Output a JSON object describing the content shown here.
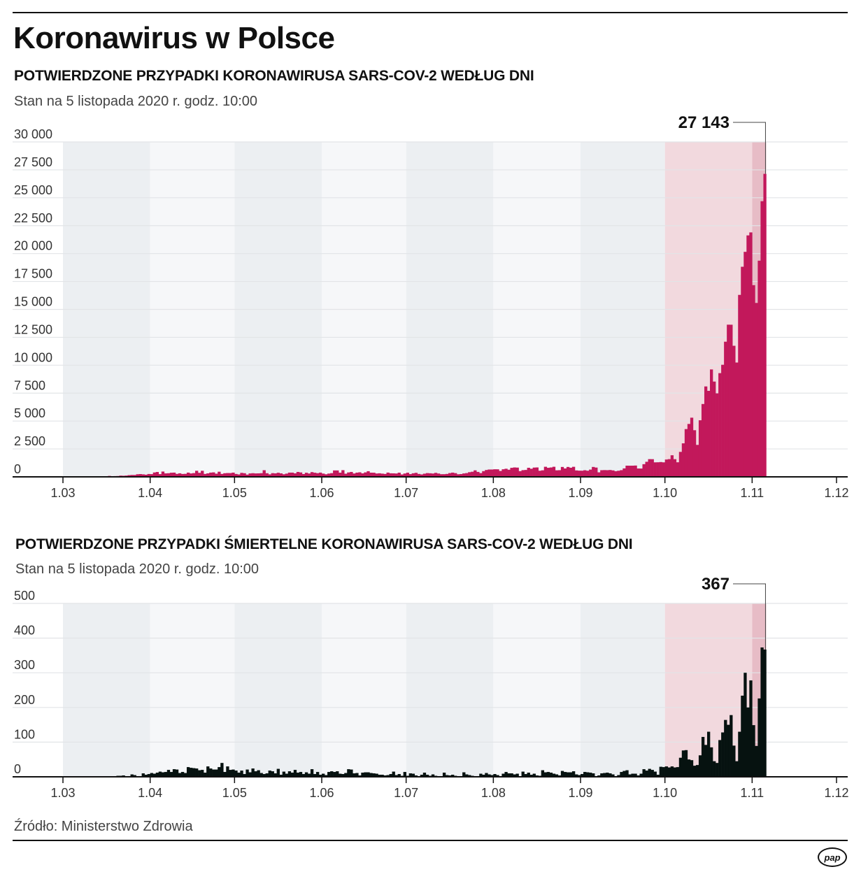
{
  "title": "Koronawirus w Polsce",
  "source": "Źródło: Ministerstwo Zdrowia",
  "logo": "pap",
  "colors": {
    "cases": "#c2185b",
    "deaths": "#061210",
    "band_dark": "#eceff2",
    "band_light": "#f6f7f9",
    "band_october": "#f2d9de",
    "band_november": "#e7bcc6"
  },
  "chart_data": [
    {
      "type": "bar",
      "title": "POTWIERDZONE PRZYPADKI KORONAWIRUSA SARS-COV-2 WEDŁUG DNI",
      "subtitle": "Stan na 5 listopada 2020 r. godz. 10:00",
      "ylim": [
        0,
        30000
      ],
      "yticks": [
        0,
        2500,
        5000,
        7500,
        10000,
        12500,
        15000,
        17500,
        20000,
        22500,
        25000,
        27500,
        30000
      ],
      "ytick_labels": [
        "0",
        "2 500",
        "5 000",
        "7 500",
        "10 000",
        "12 500",
        "15 000",
        "17 500",
        "20 000",
        "22 500",
        "25 000",
        "27 500",
        "30 000"
      ],
      "xtick_labels": [
        "1.03",
        "1.04",
        "1.05",
        "1.06",
        "1.07",
        "1.08",
        "1.09",
        "1.10",
        "1.11",
        "1.12"
      ],
      "grid": true,
      "annotation": "27 143",
      "daily_values_by_month": {
        "03": [
          0,
          0,
          0,
          1,
          0,
          4,
          6,
          6,
          6,
          5,
          18,
          19,
          17,
          36,
          21,
          52,
          87,
          59,
          68,
          76,
          111,
          98,
          115,
          152,
          170,
          168,
          232,
          249,
          224,
          193,
          256
        ],
        "04": [
          243,
          392,
          437,
          244,
          475,
          311,
          325,
          370,
          380,
          268,
          318,
          260,
          270,
          380,
          306,
          336,
          545,
          363,
          545,
          263,
          313,
          381,
          401,
          285,
          460,
          263,
          326,
          342,
          339,
          380
        ],
        "05": [
          259,
          216,
          358,
          326,
          200,
          307,
          328,
          307,
          313,
          330,
          595,
          325,
          223,
          331,
          312,
          367,
          313,
          232,
          290,
          380,
          380,
          315,
          441,
          395,
          252,
          368,
          300,
          425,
          370,
          330,
          380
        ],
        "06": [
          293,
          230,
          294,
          333,
          576,
          575,
          375,
          599,
          282,
          395,
          440,
          302,
          379,
          407,
          314,
          400,
          506,
          375,
          371,
          301,
          320,
          290,
          261,
          382,
          320,
          313,
          300,
          374,
          215,
          300
        ],
        "07": [
          371,
          245,
          320,
          361,
          262,
          217,
          284,
          336,
          321,
          299,
          358,
          299,
          238,
          239,
          263,
          337,
          380,
          334,
          232,
          250,
          306,
          337,
          418,
          458,
          584,
          443,
          337,
          512,
          615,
          657,
          658
        ],
        "08": [
          680,
          676,
          530,
          680,
          726,
          640,
          809,
          843,
          829,
          513,
          600,
          619,
          812,
          726,
          832,
          843,
          548,
          587,
          903,
          811,
          841,
          903,
          587,
          597,
          887,
          751,
          887,
          819,
          900,
          577,
          555
        ],
        "09": [
          550,
          593,
          550,
          651,
          887,
          833,
          405,
          597,
          606,
          599,
          614,
          579,
          509,
          547,
          600,
          757,
          1002,
          1000,
          1002,
          1013,
          748,
          744,
          1136,
          1350,
          1587,
          1584,
          1300,
          1306,
          1326,
          1300
        ],
        "10": [
          1552,
          1587,
          1934,
          1584,
          1306,
          2236,
          3003,
          4280,
          4739,
          5300,
          4178,
          2863,
          5068,
          6526,
          8099,
          7705,
          9622,
          8536,
          7482,
          9291,
          10040,
          12107,
          13632,
          13628,
          11742,
          10241,
          16300,
          18820,
          20156,
          21629,
          21897
        ],
        "11": [
          17171,
          15578,
          19364,
          24692,
          27143
        ]
      }
    },
    {
      "type": "bar",
      "title": "POTWIERDZONE PRZYPADKI ŚMIERTELNE KORONAWIRUSA SARS-COV-2 WEDŁUG DNI",
      "subtitle": "Stan na 5 listopada 2020 r. godz. 10:00",
      "ylim": [
        0,
        500
      ],
      "yticks": [
        0,
        100,
        200,
        300,
        400,
        500
      ],
      "ytick_labels": [
        "0",
        "100",
        "200",
        "300",
        "400",
        "500"
      ],
      "xtick_labels": [
        "1.03",
        "1.04",
        "1.05",
        "1.06",
        "1.07",
        "1.08",
        "1.09",
        "1.10",
        "1.11",
        "1.12"
      ],
      "grid": true,
      "annotation": "367",
      "daily_values_by_month": {
        "03": [
          0,
          0,
          0,
          0,
          0,
          0,
          0,
          0,
          0,
          0,
          0,
          1,
          1,
          1,
          0,
          2,
          1,
          1,
          0,
          3,
          3,
          4,
          2,
          1,
          7,
          5,
          2,
          2,
          10,
          6,
          8
        ],
        "04": [
          11,
          9,
          12,
          15,
          13,
          14,
          20,
          14,
          22,
          21,
          11,
          14,
          11,
          28,
          26,
          25,
          24,
          19,
          20,
          12,
          30,
          24,
          21,
          21,
          28,
          40,
          14,
          30,
          20,
          21
        ],
        "05": [
          18,
          12,
          18,
          8,
          21,
          13,
          24,
          16,
          19,
          11,
          8,
          10,
          18,
          16,
          10,
          23,
          6,
          15,
          9,
          16,
          12,
          20,
          12,
          14,
          8,
          13,
          9,
          22,
          8,
          14,
          6
        ],
        "06": [
          9,
          5,
          14,
          16,
          14,
          16,
          9,
          8,
          11,
          22,
          21,
          10,
          11,
          4,
          12,
          13,
          13,
          11,
          10,
          9,
          6,
          6,
          4,
          5,
          8,
          15,
          5,
          8,
          3,
          14
        ],
        "07": [
          3,
          10,
          9,
          4,
          1,
          6,
          12,
          6,
          3,
          7,
          3,
          2,
          1,
          12,
          5,
          4,
          6,
          3,
          1,
          2,
          13,
          7,
          5,
          3,
          2,
          2,
          9,
          6,
          11,
          7,
          5
        ],
        "08": [
          8,
          5,
          2,
          9,
          14,
          10,
          10,
          7,
          9,
          1,
          15,
          8,
          12,
          6,
          9,
          4,
          3,
          19,
          13,
          14,
          12,
          9,
          7,
          4,
          17,
          14,
          13,
          13,
          16,
          7,
          5
        ],
        "09": [
          8,
          14,
          13,
          12,
          10,
          2,
          4,
          10,
          11,
          12,
          10,
          7,
          2,
          5,
          14,
          17,
          19,
          7,
          9,
          9,
          4,
          9,
          22,
          18,
          23,
          20,
          15,
          6,
          29,
          28
        ],
        "10": [
          30,
          27,
          30,
          27,
          28,
          55,
          76,
          77,
          50,
          48,
          32,
          34,
          62,
          115,
          92,
          130,
          85,
          45,
          40,
          106,
          128,
          164,
          150,
          178,
          90,
          45,
          130,
          234,
          300,
          200,
          278
        ],
        "11": [
          149,
          89,
          226,
          373,
          367
        ]
      }
    }
  ]
}
